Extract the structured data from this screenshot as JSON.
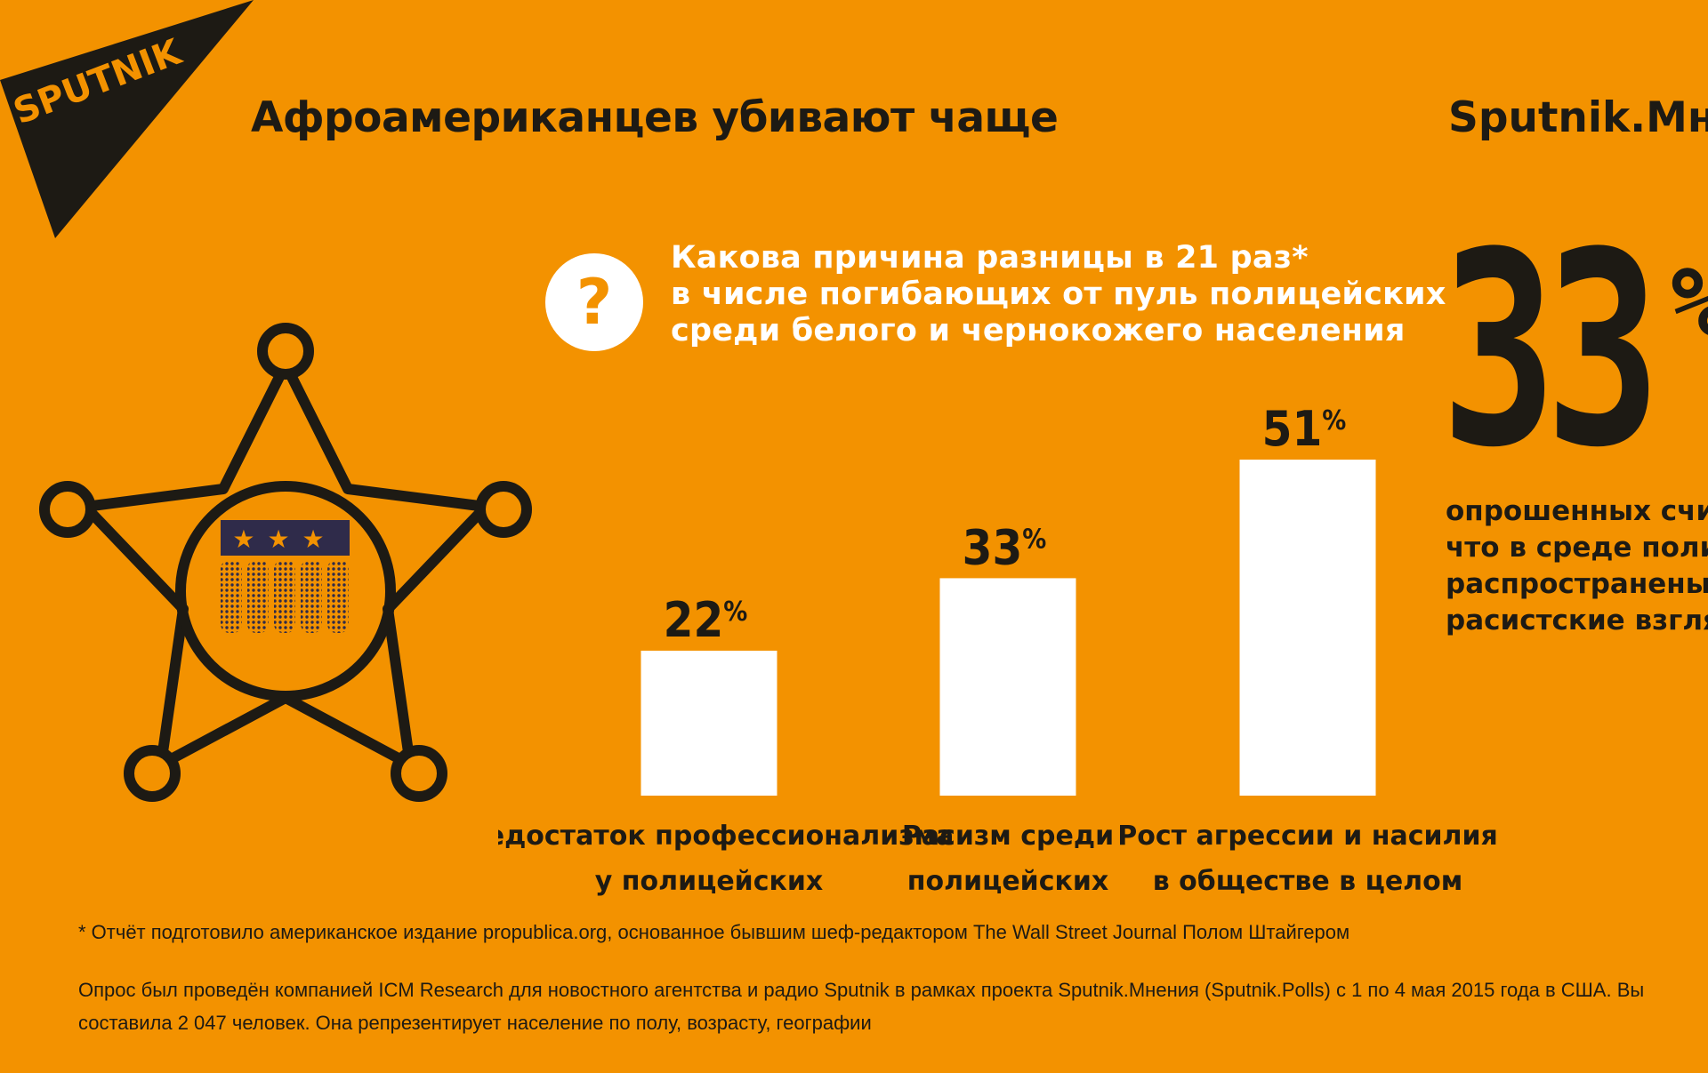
{
  "header": {
    "logo_text": "SPUTNIK",
    "title": "Афроамериканцев убивают чаще",
    "brand": "Sputnik.Мн"
  },
  "question": {
    "icon": "question-icon",
    "lines": [
      "Какова причина разницы в 21 раз*",
      "в числе погибающих от пуль полицейских",
      "среди белого и чернокожего населения"
    ]
  },
  "badge": {
    "icon": "sheriff-star-badge-icon"
  },
  "chart_data": {
    "type": "bar",
    "categories": [
      [
        "Недостаток профессионализма",
        "у полицейских"
      ],
      [
        "Расизм среди",
        "полицейских"
      ],
      [
        "Рост агрессии и насилия",
        "в обществе в целом"
      ]
    ],
    "values": [
      22,
      33,
      51
    ],
    "value_labels": [
      "22",
      "33",
      "51"
    ],
    "unit": "%",
    "bar_color": "#FFFFFF",
    "ylim": [
      0,
      51
    ]
  },
  "side_stat": {
    "value": "33",
    "unit": "%",
    "caption_lines": [
      "опрошенных счит",
      "что в среде полиц",
      "распространены",
      "расистские взгляд"
    ]
  },
  "footer": {
    "footnote": "* Отчёт подготовило американское издание propublica.org, основанное бывшим шеф-редактором The Wall Street Journal Полом Штайгером",
    "survey_lines": [
      "Опрос был проведён компанией ICM Research для новостного агентства и радио Sputnik в рамках проекта Sputnik.Мнения (Sputnik.Polls) с 1 по 4 мая 2015 года в США. Вы",
      "составила 2 047 человек. Она репрезентирует население по полу, возрасту, географии"
    ]
  },
  "colors": {
    "background": "#F39200",
    "dark": "#1d1a14",
    "white": "#FFFFFF",
    "badge_navy": "#2f2b4a"
  }
}
